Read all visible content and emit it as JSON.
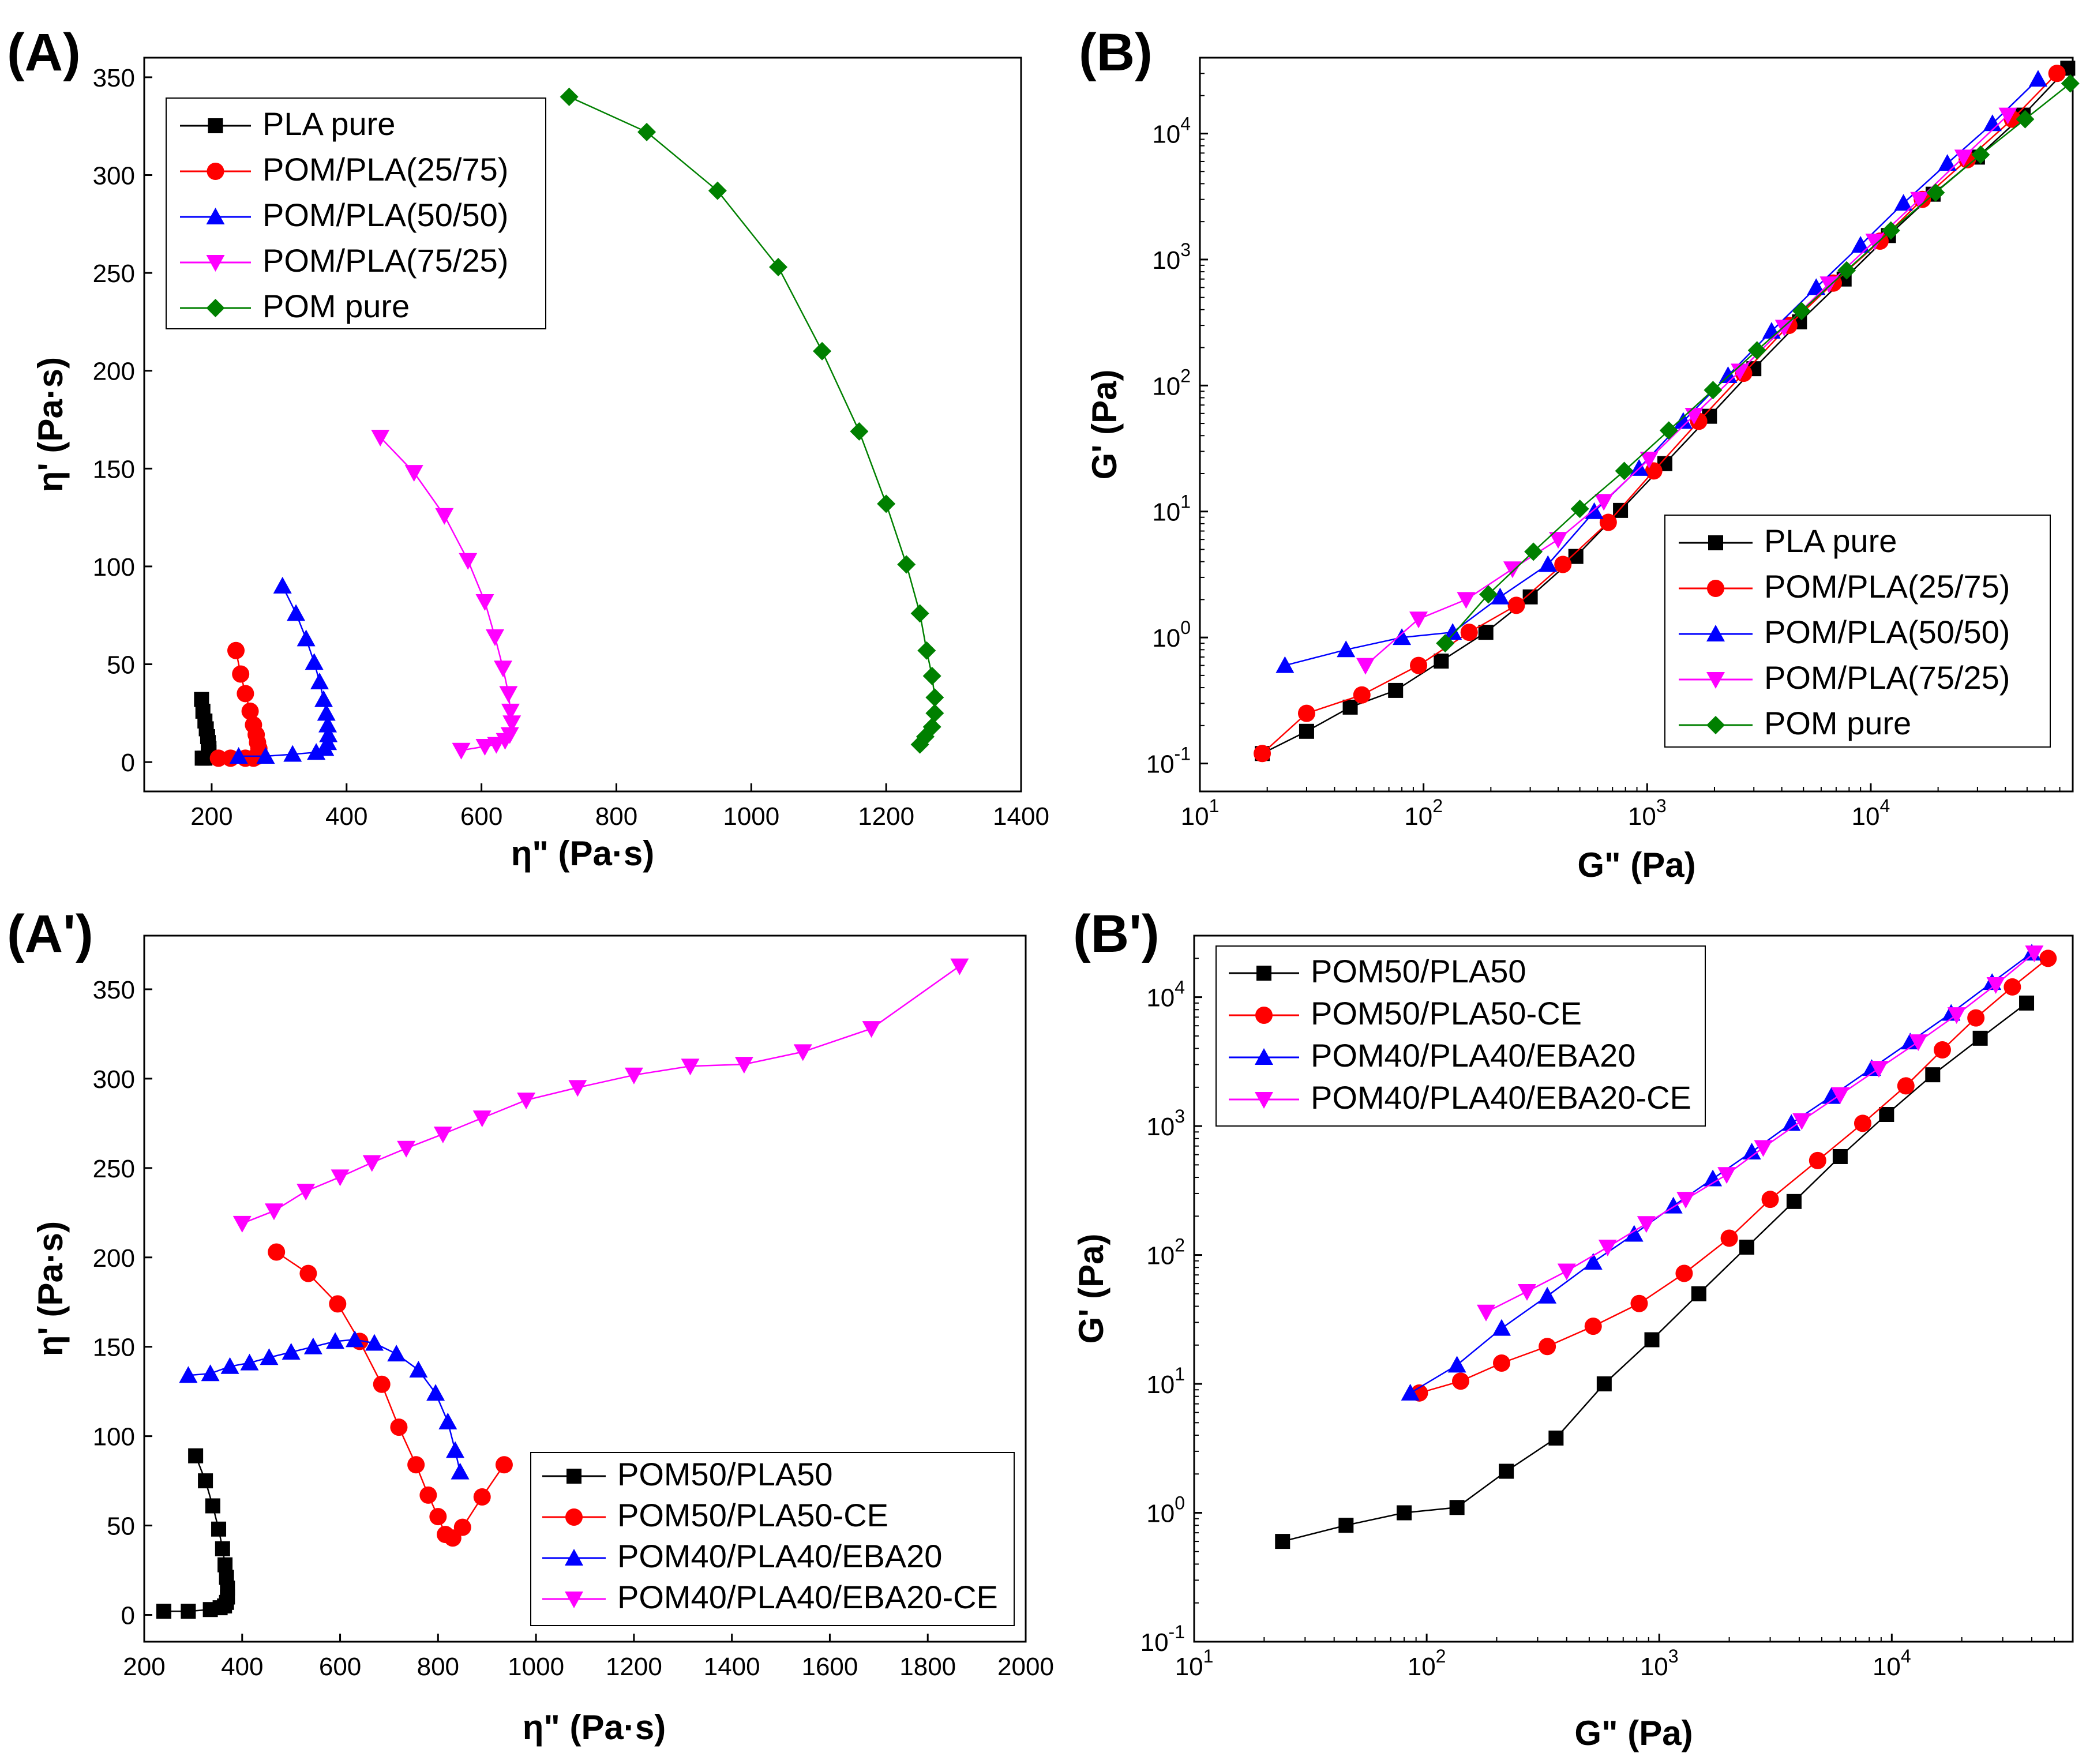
{
  "chart_data": [
    {
      "panel": "(A)",
      "type": "line",
      "xlabel": "η\" (Pa·s)",
      "ylabel": "η' (Pa·s)",
      "xscale": "linear",
      "yscale": "linear",
      "xlim": [
        100,
        1400
      ],
      "ylim": [
        -15,
        360
      ],
      "xticks": [
        200,
        400,
        600,
        800,
        1000,
        1200,
        1400
      ],
      "yticks": [
        0,
        50,
        100,
        150,
        200,
        250,
        300,
        350
      ],
      "legend_position": "top-left",
      "series": [
        {
          "name": "PLA pure",
          "color": "#000000",
          "marker": "square",
          "x": [
            185,
            187,
            190,
            192,
            194,
            195,
            196,
            196,
            195,
            190,
            186
          ],
          "y": [
            32,
            26,
            21,
            17,
            13,
            10,
            7,
            5,
            3,
            2,
            2
          ]
        },
        {
          "name": "POM/PLA(25/75)",
          "color": "#ff0000",
          "marker": "circle",
          "x": [
            236,
            243,
            250,
            257,
            262,
            266,
            268,
            270,
            270,
            268,
            262,
            250,
            228,
            210
          ],
          "y": [
            57,
            45,
            35,
            26,
            19,
            14,
            10,
            7,
            5,
            3,
            2,
            2,
            2,
            2
          ]
        },
        {
          "name": "POM/PLA(50/50)",
          "color": "#0000ff",
          "marker": "triangle-up",
          "x": [
            305,
            325,
            340,
            352,
            360,
            366,
            370,
            372,
            373,
            372,
            368,
            355,
            320,
            280,
            240
          ],
          "y": [
            90,
            76,
            63,
            51,
            41,
            32,
            25,
            19,
            14,
            10,
            7,
            5,
            4,
            3,
            3
          ]
        },
        {
          "name": "POM/PLA(75/25)",
          "color": "#ff00ff",
          "marker": "triangle-down",
          "x": [
            450,
            500,
            545,
            580,
            605,
            620,
            632,
            640,
            643,
            645,
            642,
            635,
            622,
            605,
            570
          ],
          "y": [
            166,
            148,
            126,
            103,
            82,
            64,
            48,
            35,
            26,
            20,
            14,
            11,
            9,
            8,
            6
          ]
        },
        {
          "name": "POM pure",
          "color": "#008000",
          "marker": "diamond",
          "x": [
            730,
            845,
            950,
            1040,
            1105,
            1160,
            1200,
            1230,
            1250,
            1260,
            1268,
            1272,
            1272,
            1268,
            1258,
            1250
          ],
          "y": [
            340,
            322,
            292,
            253,
            210,
            169,
            132,
            101,
            76,
            57,
            44,
            33,
            25,
            18,
            13,
            9
          ]
        }
      ]
    },
    {
      "panel": "(B)",
      "type": "line",
      "xlabel": "G\" (Pa)",
      "ylabel": "G' (Pa)",
      "xscale": "log",
      "yscale": "log",
      "xlim": [
        10,
        80000
      ],
      "ylim": [
        0.06,
        40000
      ],
      "xticks": [
        "10^1",
        "10^2",
        "10^3",
        "10^4"
      ],
      "yticks": [
        "10^-1",
        "10^0",
        "10^1",
        "10^2",
        "10^3",
        "10^4"
      ],
      "legend_position": "bottom-right",
      "series": [
        {
          "name": "PLA pure",
          "color": "#000000",
          "marker": "square",
          "x": [
            19,
            30,
            47,
            75,
            120,
            190,
            300,
            480,
            760,
            1200,
            1900,
            3000,
            4800,
            7600,
            12000,
            19000,
            30000,
            48000,
            76000
          ],
          "y": [
            0.12,
            0.18,
            0.28,
            0.38,
            0.65,
            1.1,
            2.1,
            4.4,
            10.2,
            24,
            57,
            136,
            320,
            700,
            1550,
            3300,
            6500,
            14000,
            33000
          ]
        },
        {
          "name": "POM/PLA(25/75)",
          "color": "#ff0000",
          "marker": "circle",
          "x": [
            19,
            30,
            53,
            95,
            160,
            260,
            420,
            670,
            1070,
            1700,
            2700,
            4300,
            6800,
            11000,
            17000,
            27000,
            43000,
            68000
          ],
          "y": [
            0.12,
            0.25,
            0.35,
            0.6,
            1.1,
            1.8,
            3.8,
            8.2,
            21,
            52,
            125,
            300,
            650,
            1400,
            3000,
            6200,
            13000,
            30000
          ]
        },
        {
          "name": "POM/PLA(50/50)",
          "color": "#0000ff",
          "marker": "triangle-up",
          "x": [
            24,
            45,
            80,
            135,
            220,
            360,
            580,
            920,
            1450,
            2300,
            3600,
            5700,
            9000,
            14000,
            22000,
            35000,
            56000
          ],
          "y": [
            0.6,
            0.8,
            1.0,
            1.1,
            2.1,
            3.8,
            10,
            22,
            52,
            120,
            270,
            600,
            1300,
            2800,
            5800,
            12000,
            27000
          ]
        },
        {
          "name": "POM/PLA(75/25)",
          "color": "#ff00ff",
          "marker": "triangle-down",
          "x": [
            55,
            95,
            155,
            250,
            400,
            640,
            1020,
            1620,
            2600,
            4100,
            6500,
            10400,
            16500,
            26000,
            41000
          ],
          "y": [
            0.6,
            1.4,
            2.0,
            3.5,
            6.0,
            12,
            26,
            58,
            130,
            290,
            640,
            1400,
            3000,
            6500,
            14000
          ]
        },
        {
          "name": "POM pure",
          "color": "#008000",
          "marker": "diamond",
          "x": [
            125,
            195,
            310,
            500,
            790,
            1250,
            1970,
            3100,
            4900,
            7800,
            12300,
            19500,
            31000,
            49000,
            78000
          ],
          "y": [
            0.9,
            2.2,
            4.8,
            10.5,
            21,
            44,
            92,
            190,
            390,
            820,
            1700,
            3400,
            6800,
            13000,
            25000
          ]
        }
      ]
    },
    {
      "panel": "(A')",
      "type": "line",
      "xlabel": "η\" (Pa·s)",
      "ylabel": "η' (Pa·s)",
      "xscale": "linear",
      "yscale": "linear",
      "xlim": [
        200,
        2000
      ],
      "ylim": [
        -15,
        380
      ],
      "xticks": [
        200,
        400,
        600,
        800,
        1000,
        1200,
        1400,
        1600,
        1800,
        2000
      ],
      "yticks": [
        0,
        50,
        100,
        150,
        200,
        250,
        300,
        350
      ],
      "legend_position": "bottom-right",
      "series": [
        {
          "name": "POM50/PLA50",
          "color": "#000000",
          "marker": "square",
          "x": [
            305,
            325,
            340,
            352,
            360,
            365,
            368,
            370,
            370,
            368,
            364,
            355,
            335,
            290,
            240
          ],
          "y": [
            89,
            75,
            61,
            48,
            37,
            28,
            21,
            15,
            10,
            7,
            5,
            4,
            3,
            2,
            2
          ]
        },
        {
          "name": "POM50/PLA50-CE",
          "color": "#ff0000",
          "marker": "circle",
          "x": [
            470,
            535,
            595,
            640,
            685,
            720,
            755,
            780,
            800,
            815,
            830,
            850,
            890,
            935
          ],
          "y": [
            203,
            191,
            174,
            153,
            129,
            105,
            84,
            67,
            55,
            45,
            43,
            49,
            66,
            84
          ]
        },
        {
          "name": "POM40/PLA40/EBA20",
          "color": "#0000ff",
          "marker": "triangle-up",
          "x": [
            290,
            335,
            375,
            415,
            455,
            500,
            545,
            590,
            630,
            670,
            715,
            760,
            795,
            820,
            835,
            845
          ],
          "y": [
            134,
            135,
            139,
            141,
            144,
            147,
            150,
            153,
            154,
            152,
            146,
            137,
            124,
            108,
            92,
            80
          ]
        },
        {
          "name": "POM40/PLA40/EBA20-CE",
          "color": "#ff00ff",
          "marker": "triangle-down",
          "x": [
            400,
            465,
            530,
            600,
            665,
            735,
            810,
            890,
            980,
            1085,
            1200,
            1315,
            1425,
            1545,
            1685,
            1865
          ],
          "y": [
            219,
            226,
            237,
            245,
            253,
            261,
            269,
            278,
            288,
            295,
            302,
            307,
            308,
            315,
            328,
            363
          ]
        }
      ]
    },
    {
      "panel": "(B')",
      "type": "line",
      "xlabel": "G\" (Pa)",
      "ylabel": "G' (Pa)",
      "xscale": "log",
      "yscale": "log",
      "xlim": [
        10,
        60000
      ],
      "ylim": [
        0.1,
        30000
      ],
      "xticks": [
        "10^1",
        "10^2",
        "10^3",
        "10^4"
      ],
      "yticks": [
        "10^-1",
        "10^0",
        "10^1",
        "10^2",
        "10^3",
        "10^4"
      ],
      "legend_position": "top-left",
      "series": [
        {
          "name": "POM50/PLA50",
          "color": "#000000",
          "marker": "square",
          "x": [
            24,
            45,
            80,
            135,
            220,
            360,
            580,
            930,
            1480,
            2380,
            3800,
            6000,
            9500,
            15000,
            24000,
            38000
          ],
          "y": [
            0.6,
            0.8,
            1.0,
            1.1,
            2.1,
            3.8,
            10,
            22,
            50,
            115,
            260,
            580,
            1230,
            2500,
            4800,
            9000
          ]
        },
        {
          "name": "POM50/PLA50-CE",
          "color": "#ff0000",
          "marker": "circle",
          "x": [
            93,
            140,
            210,
            330,
            520,
            820,
            1280,
            2000,
            3000,
            4800,
            7500,
            11500,
            16500,
            23000,
            33000,
            47000
          ],
          "y": [
            8.5,
            10.5,
            14.5,
            19.5,
            28,
            42,
            72,
            135,
            270,
            540,
            1050,
            2050,
            3900,
            6900,
            12000,
            20000
          ]
        },
        {
          "name": "POM40/PLA40/EBA20",
          "color": "#0000ff",
          "marker": "triangle-up",
          "x": [
            85,
            135,
            210,
            330,
            520,
            780,
            1150,
            1700,
            2500,
            3700,
            5500,
            8200,
            12000,
            18000,
            27000,
            40000
          ],
          "y": [
            8.5,
            14,
            27,
            48,
            88,
            145,
            240,
            390,
            630,
            1050,
            1700,
            2800,
            4500,
            7500,
            13000,
            22000
          ]
        },
        {
          "name": "POM40/PLA40/EBA20-CE",
          "color": "#ff00ff",
          "marker": "triangle-down",
          "x": [
            180,
            270,
            400,
            600,
            880,
            1300,
            1950,
            2800,
            4100,
            6000,
            8800,
            13000,
            19000,
            28000,
            41000
          ],
          "y": [
            36,
            52,
            75,
            115,
            175,
            270,
            420,
            680,
            1100,
            1750,
            2800,
            4500,
            7300,
            12500,
            22000
          ]
        }
      ]
    }
  ]
}
